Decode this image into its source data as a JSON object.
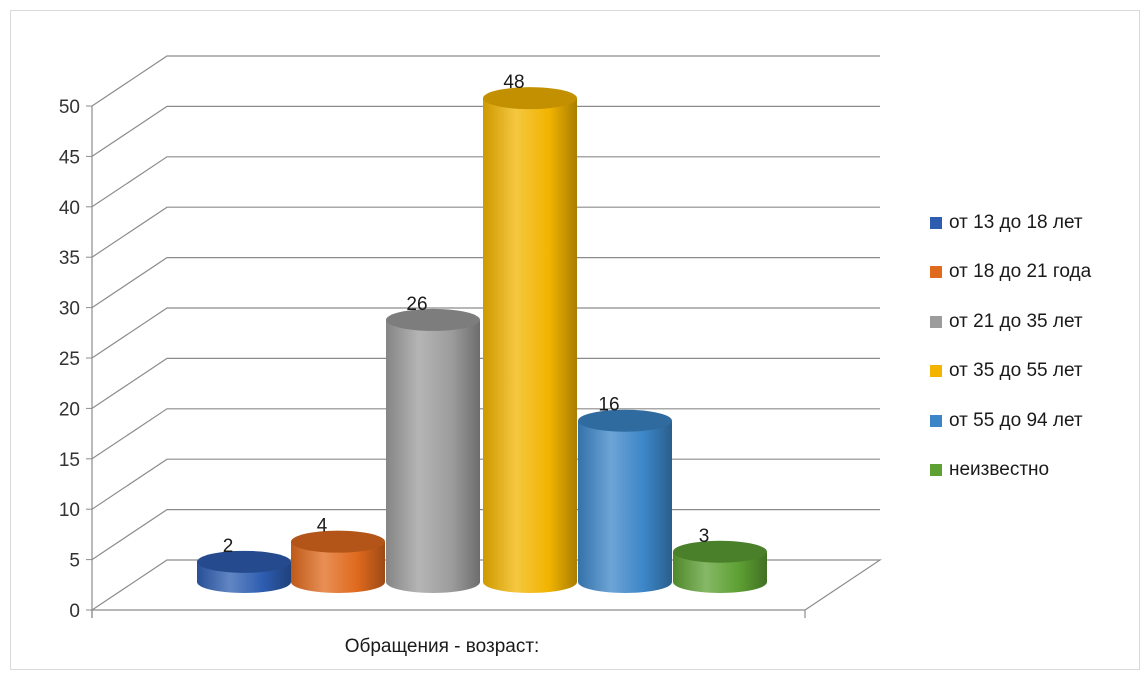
{
  "chart_data": {
    "type": "bar",
    "style": "3d-cylinder",
    "categories": [
      "Обращения  - возраст:"
    ],
    "series": [
      {
        "name": "от 13 до 18 лет",
        "values": [
          2
        ],
        "color": "#2E5DB0"
      },
      {
        "name": "от 18 до 21 года",
        "values": [
          4
        ],
        "color": "#E06A1E"
      },
      {
        "name": "от 21 до 35 лет",
        "values": [
          26
        ],
        "color": "#9C9C9C"
      },
      {
        "name": "от 35 до 55 лет",
        "values": [
          48
        ],
        "color": "#F2B400"
      },
      {
        "name": "от 55 до 94 лет",
        "values": [
          16
        ],
        "color": "#3C86C8"
      },
      {
        "name": "неизвестно",
        "values": [
          3
        ],
        "color": "#5DA033"
      }
    ],
    "yticks": [
      "0",
      "5",
      "10",
      "15",
      "20",
      "25",
      "30",
      "35",
      "40",
      "45",
      "50"
    ],
    "ylim": [
      0,
      50
    ],
    "grid": true,
    "legend_position": "right",
    "title": "",
    "xlabel": "",
    "ylabel": ""
  }
}
